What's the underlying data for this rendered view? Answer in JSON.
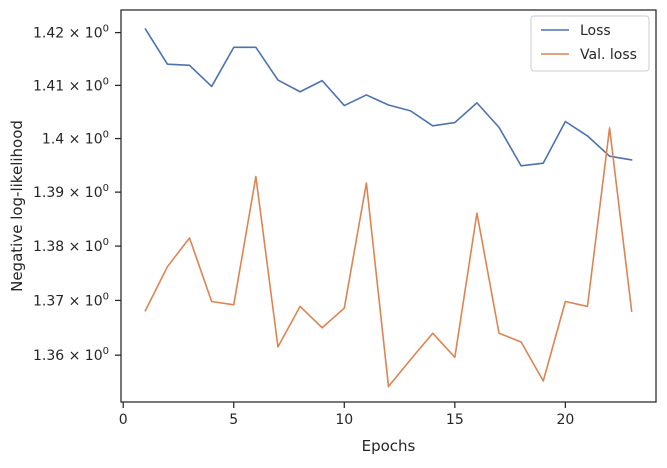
{
  "chart_data": {
    "type": "line",
    "title": "",
    "xlabel": "Epochs",
    "ylabel": "Negative log-likelihood",
    "xlim": [
      -0.1,
      24.1
    ],
    "ylim": [
      1.3515,
      1.4243
    ],
    "y_scale": "log",
    "grid": false,
    "legend_position": "top-right",
    "x_ticks": [
      0,
      5,
      10,
      15,
      20
    ],
    "y_ticks": [
      {
        "value": 1.36,
        "mantissa": "1.36"
      },
      {
        "value": 1.37,
        "mantissa": "1.37"
      },
      {
        "value": 1.38,
        "mantissa": "1.38"
      },
      {
        "value": 1.39,
        "mantissa": "1.39"
      },
      {
        "value": 1.4,
        "mantissa": "1.4"
      },
      {
        "value": 1.41,
        "mantissa": "1.41"
      },
      {
        "value": 1.42,
        "mantissa": "1.42"
      }
    ],
    "tick_suffix": "× 10",
    "tick_exponent": "0",
    "x": [
      1,
      2,
      3,
      4,
      5,
      6,
      7,
      8,
      9,
      10,
      11,
      12,
      13,
      14,
      15,
      16,
      17,
      18,
      19,
      20,
      21,
      22,
      23
    ],
    "series": [
      {
        "name": "Loss",
        "color": "#4c72b0",
        "values": [
          1.4207,
          1.414,
          1.4138,
          1.4098,
          1.4172,
          1.4172,
          1.411,
          1.4088,
          1.4109,
          1.4062,
          1.4082,
          1.4063,
          1.4052,
          1.4024,
          1.403,
          1.4067,
          1.4021,
          1.3949,
          1.3954,
          1.4032,
          1.4005,
          1.3967,
          1.396
        ]
      },
      {
        "name": "Val. loss",
        "color": "#dd8452",
        "values": [
          1.3681,
          1.3762,
          1.3815,
          1.3698,
          1.3692,
          1.3929,
          1.3615,
          1.3689,
          1.365,
          1.3686,
          1.3917,
          1.3543,
          1.3592,
          1.364,
          1.3596,
          1.3861,
          1.364,
          1.3624,
          1.3553,
          1.3698,
          1.3689,
          1.402,
          1.368
        ]
      }
    ]
  }
}
